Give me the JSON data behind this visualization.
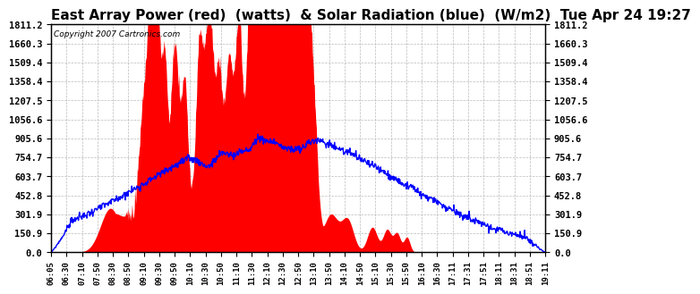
{
  "title": "East Array Power (red)  (watts)  & Solar Radiation (blue)  (W/m2)  Tue Apr 24 19:27",
  "copyright_text": "Copyright 2007 Cartronics.com",
  "yticks": [
    0.0,
    150.9,
    301.9,
    452.8,
    603.7,
    754.7,
    905.6,
    1056.6,
    1207.5,
    1358.4,
    1509.4,
    1660.3,
    1811.2
  ],
  "ymax": 1811.2,
  "ymin": 0.0,
  "xtick_labels": [
    "06:05",
    "06:30",
    "07:10",
    "07:50",
    "08:30",
    "08:50",
    "09:10",
    "09:30",
    "09:50",
    "10:10",
    "10:30",
    "10:50",
    "11:10",
    "11:30",
    "12:10",
    "12:30",
    "12:50",
    "13:10",
    "13:50",
    "14:10",
    "14:50",
    "15:10",
    "15:30",
    "15:50",
    "16:10",
    "16:30",
    "17:11",
    "17:31",
    "17:51",
    "18:11",
    "18:31",
    "18:51",
    "19:11"
  ],
  "red_color": "#ff0000",
  "blue_color": "#0000ff",
  "bg_color": "#ffffff",
  "title_fontsize": 11,
  "grid_color": "#aaaaaa"
}
